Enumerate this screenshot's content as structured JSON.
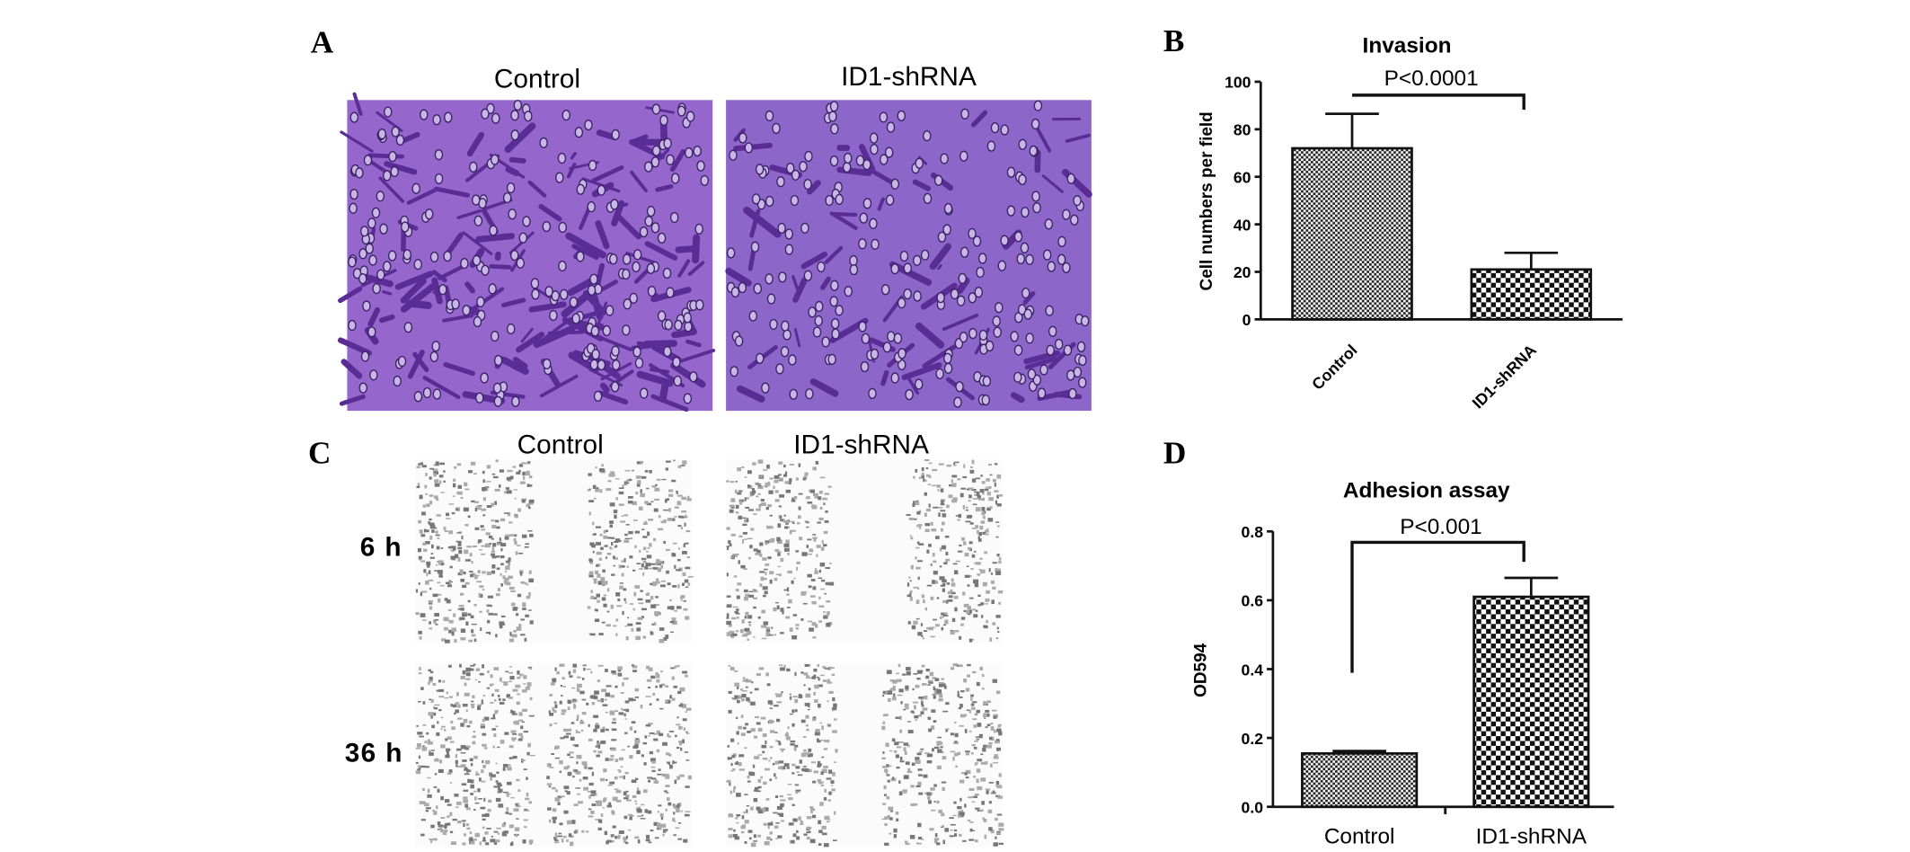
{
  "panels": [
    {
      "label": "A",
      "columns": [
        "Control",
        "ID1-shRNA"
      ]
    },
    {
      "label": "C",
      "columns": [
        "Control",
        "ID1-shRNA"
      ],
      "rows": [
        "6 h",
        "36 h"
      ]
    }
  ],
  "chart_data": [
    {
      "type": "bar",
      "panel": "B",
      "title": "Invasion",
      "y_label": "Cell numbers per field",
      "categories": [
        "Control",
        "ID1-shRNA"
      ],
      "values": [
        72,
        21
      ],
      "errors": [
        14.5,
        7
      ],
      "ylim": [
        0,
        100
      ],
      "yticks": [
        0,
        20,
        40,
        60,
        80,
        100
      ],
      "annotation": "P<0.0001"
    },
    {
      "type": "bar",
      "panel": "D",
      "title": "Adhesion assay",
      "y_label": "OD594",
      "categories": [
        "Control",
        "ID1-shRNA"
      ],
      "values": [
        0.155,
        0.61
      ],
      "errors": [
        0.007,
        0.055
      ],
      "ylim": [
        0,
        0.8
      ],
      "yticks": [
        {
          "value": 0,
          "label": "0.0"
        },
        0.2,
        0.4,
        0.6,
        0.8
      ],
      "annotation": "P<0.001"
    }
  ]
}
